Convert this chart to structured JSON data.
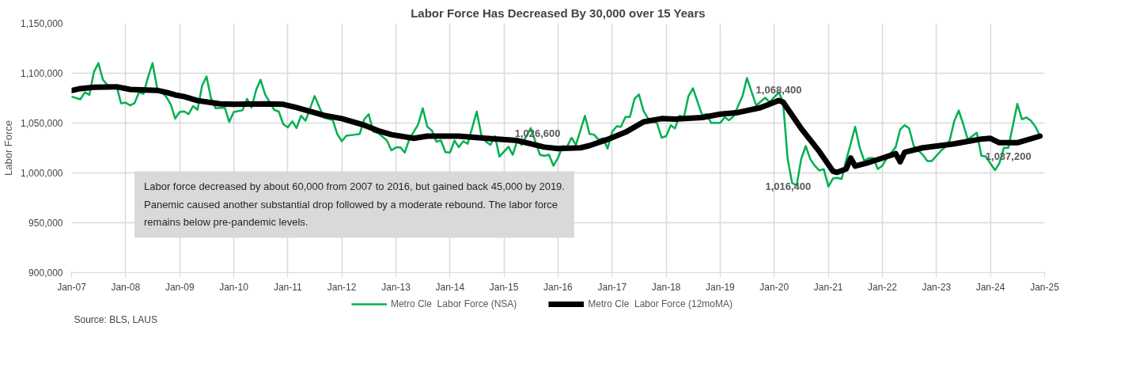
{
  "chart_data": {
    "type": "line",
    "title": "Labor Force Has Decreased By 30,000 over 15 Years",
    "ylabel": "Labor Force",
    "xlim": [
      "2007-01",
      "2025-01"
    ],
    "ylim": [
      900000,
      1150000
    ],
    "xticks": [
      {
        "value": "2007-01",
        "label": "Jan-07"
      },
      {
        "value": "2008-01",
        "label": "Jan-08"
      },
      {
        "value": "2009-01",
        "label": "Jan-09"
      },
      {
        "value": "2010-01",
        "label": "Jan-10"
      },
      {
        "value": "2011-01",
        "label": "Jan-11"
      },
      {
        "value": "2012-01",
        "label": "Jan-12"
      },
      {
        "value": "2013-01",
        "label": "Jan-13"
      },
      {
        "value": "2014-01",
        "label": "Jan-14"
      },
      {
        "value": "2015-01",
        "label": "Jan-15"
      },
      {
        "value": "2016-01",
        "label": "Jan-16"
      },
      {
        "value": "2017-01",
        "label": "Jan-17"
      },
      {
        "value": "2018-01",
        "label": "Jan-18"
      },
      {
        "value": "2019-01",
        "label": "Jan-19"
      },
      {
        "value": "2020-01",
        "label": "Jan-20"
      },
      {
        "value": "2021-01",
        "label": "Jan-21"
      },
      {
        "value": "2022-01",
        "label": "Jan-22"
      },
      {
        "value": "2023-01",
        "label": "Jan-23"
      },
      {
        "value": "2024-01",
        "label": "Jan-24"
      },
      {
        "value": "2025-01",
        "label": "Jan-25"
      }
    ],
    "yticks": [
      {
        "value": 900000,
        "label": "900,000"
      },
      {
        "value": 950000,
        "label": "950,000"
      },
      {
        "value": 1000000,
        "label": "1,000,000"
      },
      {
        "value": 1050000,
        "label": "1,050,000"
      },
      {
        "value": 1100000,
        "label": "1,100,000"
      },
      {
        "value": 1150000,
        "label": "1,150,000"
      }
    ],
    "grid": true,
    "legend": "bottom",
    "marker": "none",
    "line_style": "solid",
    "series": [
      {
        "name": "Metro Cle  Labor Force (NSA)",
        "color": "#00b050",
        "x": [
          "2007-01",
          "2007-03",
          "2007-04",
          "2007-05",
          "2007-06",
          "2007-07",
          "2007-08",
          "2007-09",
          "2007-11",
          "2007-12",
          "2008-01",
          "2008-02",
          "2008-03",
          "2008-04",
          "2008-05",
          "2008-06",
          "2008-07",
          "2008-08",
          "2008-10",
          "2008-11",
          "2008-12",
          "2009-01",
          "2009-02",
          "2009-03",
          "2009-04",
          "2009-05",
          "2009-06",
          "2009-07",
          "2009-08",
          "2009-09",
          "2009-11",
          "2009-12",
          "2010-01",
          "2010-03",
          "2010-04",
          "2010-05",
          "2010-06",
          "2010-07",
          "2010-08",
          "2010-10",
          "2010-11",
          "2010-12",
          "2011-01",
          "2011-02",
          "2011-03",
          "2011-04",
          "2011-05",
          "2011-07",
          "2011-09",
          "2011-11",
          "2011-12",
          "2012-01",
          "2012-02",
          "2012-04",
          "2012-05",
          "2012-06",
          "2012-07",
          "2012-08",
          "2012-09",
          "2012-11",
          "2012-12",
          "2013-01",
          "2013-02",
          "2013-03",
          "2013-04",
          "2013-06",
          "2013-07",
          "2013-08",
          "2013-09",
          "2013-10",
          "2013-11",
          "2013-12",
          "2014-01",
          "2014-02",
          "2014-03",
          "2014-04",
          "2014-05",
          "2014-07",
          "2014-08",
          "2014-09",
          "2014-10",
          "2014-11",
          "2014-12",
          "2015-02",
          "2015-03",
          "2015-04",
          "2015-05",
          "2015-07",
          "2015-09",
          "2015-10",
          "2015-11",
          "2015-12",
          "2016-01",
          "2016-02",
          "2016-03",
          "2016-04",
          "2016-05",
          "2016-07",
          "2016-08",
          "2016-09",
          "2016-10",
          "2016-11",
          "2016-12",
          "2017-01",
          "2017-02",
          "2017-03",
          "2017-04",
          "2017-05",
          "2017-06",
          "2017-07",
          "2017-08",
          "2017-09",
          "2017-11",
          "2017-12",
          "2018-01",
          "2018-02",
          "2018-03",
          "2018-04",
          "2018-05",
          "2018-06",
          "2018-07",
          "2018-09",
          "2018-10",
          "2018-11",
          "2019-01",
          "2019-02",
          "2019-03",
          "2019-04",
          "2019-06",
          "2019-07",
          "2019-09",
          "2019-11",
          "2019-12",
          "2020-02",
          "2020-03",
          "2020-04",
          "2020-05",
          "2020-06",
          "2020-07",
          "2020-08",
          "2020-09",
          "2020-10",
          "2020-11",
          "2020-12",
          "2021-01",
          "2021-02",
          "2021-03",
          "2021-04",
          "2021-05",
          "2021-06",
          "2021-07",
          "2021-08",
          "2021-09",
          "2021-10",
          "2021-11",
          "2021-12",
          "2022-01",
          "2022-02",
          "2022-04",
          "2022-05",
          "2022-06",
          "2022-07",
          "2022-08",
          "2022-10",
          "2022-11",
          "2022-12",
          "2023-02",
          "2023-03",
          "2023-04",
          "2023-05",
          "2023-06",
          "2023-07",
          "2023-08",
          "2023-10",
          "2023-11",
          "2023-12",
          "2024-02",
          "2024-03",
          "2024-04",
          "2024-05",
          "2024-07",
          "2024-08",
          "2024-09",
          "2024-10",
          "2024-11",
          "2024-12"
        ],
        "values": [
          1076500,
          1073800,
          1080900,
          1078200,
          1101300,
          1110100,
          1093400,
          1088100,
          1087000,
          1069900,
          1070500,
          1067700,
          1069900,
          1080900,
          1079300,
          1096300,
          1110100,
          1085300,
          1076500,
          1068800,
          1054500,
          1061100,
          1061700,
          1058900,
          1067000,
          1063300,
          1087500,
          1096700,
          1074300,
          1064800,
          1065500,
          1051200,
          1061100,
          1062800,
          1074300,
          1065500,
          1083100,
          1093400,
          1078700,
          1063300,
          1061500,
          1049000,
          1045700,
          1051800,
          1045000,
          1057300,
          1052300,
          1077100,
          1055600,
          1052900,
          1039100,
          1031800,
          1037300,
          1038400,
          1039100,
          1053800,
          1058900,
          1041300,
          1040200,
          1032500,
          1022600,
          1025500,
          1025500,
          1020400,
          1033600,
          1049000,
          1064800,
          1046300,
          1042400,
          1031400,
          1032500,
          1020800,
          1020400,
          1032500,
          1025900,
          1031800,
          1029200,
          1061500,
          1038000,
          1031400,
          1028100,
          1036900,
          1016400,
          1026300,
          1018200,
          1032500,
          1028100,
          1045000,
          1018200,
          1017100,
          1018200,
          1007200,
          1014900,
          1027000,
          1025900,
          1035300,
          1028100,
          1057300,
          1039100,
          1038400,
          1033200,
          1034700,
          1024400,
          1041300,
          1046800,
          1046300,
          1056200,
          1056200,
          1074300,
          1078700,
          1062200,
          1054500,
          1049600,
          1035300,
          1036900,
          1047900,
          1044600,
          1057300,
          1056000,
          1077100,
          1084800,
          1057800,
          1058900,
          1050100,
          1050100,
          1056000,
          1052700,
          1056700,
          1077100,
          1095200,
          1067700,
          1075400,
          1071000,
          1080900,
          1071000,
          1013800,
          990000,
          987400,
          1013800,
          1027000,
          1013800,
          1007200,
          1002400,
          1003900,
          986300,
          994400,
          995100,
          994000,
          1012700,
          1029200,
          1046300,
          1025200,
          1012000,
          1014900,
          1014900,
          1003900,
          1007200,
          1014900,
          1025900,
          1043500,
          1047900,
          1044600,
          1027000,
          1018200,
          1012000,
          1012000,
          1022200,
          1025900,
          1032500,
          1051600,
          1062600,
          1049000,
          1033600,
          1040200,
          1017300,
          1016400,
          1002800,
          1009400,
          1025200,
          1025200,
          1069200,
          1053800,
          1055600,
          1052300,
          1046300,
          1036900
        ]
      },
      {
        "name": "Metro Cle  Labor Force (12moMA)",
        "color": "#000000",
        "x": [
          "2007-01",
          "2007-03",
          "2007-06",
          "2007-11",
          "2008-02",
          "2008-08",
          "2008-10",
          "2008-12",
          "2009-02",
          "2009-05",
          "2009-10",
          "2010-01",
          "2010-08",
          "2010-12",
          "2011-03",
          "2011-09",
          "2012-01",
          "2012-06",
          "2012-09",
          "2012-12",
          "2013-05",
          "2013-08",
          "2014-03",
          "2014-09",
          "2015-04",
          "2015-06",
          "2015-10",
          "2016-01",
          "2016-06",
          "2016-08",
          "2016-12",
          "2017-04",
          "2017-08",
          "2017-12",
          "2018-03",
          "2018-09",
          "2019-01",
          "2019-05",
          "2019-10",
          "2020-02",
          "2020-03",
          "2020-07",
          "2020-11",
          "2021-02",
          "2021-03",
          "2021-05",
          "2021-06",
          "2021-07",
          "2021-10",
          "2022-01",
          "2022-04",
          "2022-05",
          "2022-06",
          "2022-10",
          "2023-05",
          "2023-11",
          "2024-01",
          "2024-03",
          "2024-07",
          "2024-12"
        ],
        "values": [
          1082600,
          1084600,
          1085900,
          1086400,
          1083700,
          1082800,
          1080900,
          1078200,
          1076500,
          1072500,
          1069200,
          1068800,
          1069200,
          1068800,
          1065500,
          1057800,
          1054500,
          1047900,
          1042400,
          1038400,
          1034700,
          1036900,
          1036900,
          1034700,
          1032500,
          1030300,
          1025900,
          1024400,
          1025200,
          1027400,
          1033600,
          1040800,
          1051200,
          1054500,
          1054000,
          1055600,
          1058900,
          1060600,
          1065500,
          1072700,
          1071000,
          1044600,
          1021500,
          1001700,
          1000600,
          1003900,
          1014900,
          1006800,
          1010500,
          1014900,
          1019300,
          1011200,
          1020800,
          1025200,
          1029200,
          1034000,
          1034700,
          1030300,
          1030300,
          1036900
        ]
      }
    ],
    "annotations": [
      "Labor force decreased by about 60,000 from 2007 to 2016, but gained back 45,000 by 2019. Panemic caused another substantial drop followed by a moderate rebound. The labor force remains below pre-pandemic levels.",
      {
        "text": "1,026,600",
        "x": "2015-12",
        "y": 1026600
      },
      {
        "text": "1,068,400",
        "x": "2020-02",
        "y": 1068400
      },
      {
        "text": "1,016,400",
        "x": "2020-12",
        "y": 1016400
      },
      {
        "text": "1,037,200",
        "x": "2024-12",
        "y": 1037200
      },
      "Source: BLS, LAUS"
    ]
  }
}
